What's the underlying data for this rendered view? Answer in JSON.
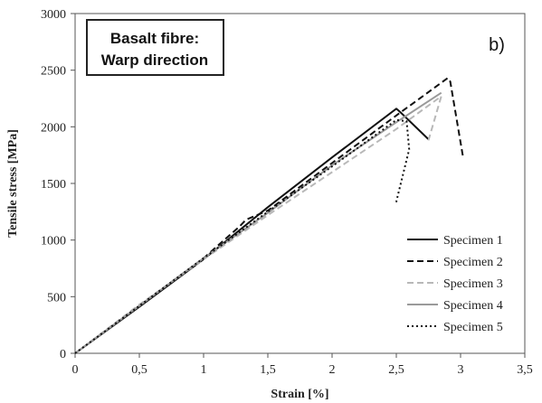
{
  "chart_data": {
    "type": "line",
    "title": "",
    "xlabel": "Strain [%]",
    "ylabel": "Tensile stress [MPa]",
    "xlim": [
      0,
      3.5
    ],
    "ylim": [
      0,
      3000
    ],
    "x_ticks": [
      "0",
      "0,5",
      "1",
      "1,5",
      "2",
      "2,5",
      "3",
      "3,5"
    ],
    "y_ticks": [
      "0",
      "500",
      "1000",
      "1500",
      "2000",
      "2500",
      "3000"
    ],
    "grid": "none",
    "legend_position": "bottom-right",
    "annotation": [
      "Basalt fibre:",
      "Warp direction"
    ],
    "panel_label": "b)",
    "series": [
      {
        "name": "Specimen 1",
        "color": "#111111",
        "style": "solid",
        "points": [
          [
            0,
            0
          ],
          [
            0.5,
            410
          ],
          [
            1.0,
            830
          ],
          [
            1.5,
            1290
          ],
          [
            2.0,
            1730
          ],
          [
            2.5,
            2160
          ],
          [
            2.53,
            2130
          ],
          [
            2.75,
            1890
          ]
        ]
      },
      {
        "name": "Specimen 2",
        "color": "#111111",
        "style": "dashed",
        "points": [
          [
            0,
            0
          ],
          [
            0.5,
            420
          ],
          [
            1.0,
            840
          ],
          [
            1.28,
            1120
          ],
          [
            1.33,
            1180
          ],
          [
            1.5,
            1260
          ],
          [
            2.0,
            1680
          ],
          [
            2.5,
            2100
          ],
          [
            2.9,
            2430
          ],
          [
            2.92,
            2400
          ],
          [
            3.02,
            1730
          ]
        ]
      },
      {
        "name": "Specimen 3",
        "color": "#b8b8b8",
        "style": "dashed",
        "points": [
          [
            0,
            0
          ],
          [
            0.5,
            430
          ],
          [
            1.0,
            830
          ],
          [
            1.5,
            1220
          ],
          [
            2.0,
            1600
          ],
          [
            2.5,
            1980
          ],
          [
            2.85,
            2270
          ],
          [
            2.75,
            1880
          ]
        ]
      },
      {
        "name": "Specimen 4",
        "color": "#9a9a9a",
        "style": "solid",
        "points": [
          [
            0,
            0
          ],
          [
            0.5,
            420
          ],
          [
            1.0,
            840
          ],
          [
            1.5,
            1240
          ],
          [
            2.0,
            1660
          ],
          [
            2.5,
            2040
          ],
          [
            2.85,
            2300
          ]
        ]
      },
      {
        "name": "Specimen 5",
        "color": "#111111",
        "style": "dotted",
        "points": [
          [
            0,
            0
          ],
          [
            0.5,
            420
          ],
          [
            1.0,
            840
          ],
          [
            1.5,
            1250
          ],
          [
            2.0,
            1650
          ],
          [
            2.5,
            2060
          ],
          [
            2.58,
            2050
          ],
          [
            2.6,
            1800
          ],
          [
            2.5,
            1340
          ],
          [
            2.48,
            1330
          ]
        ]
      }
    ]
  }
}
